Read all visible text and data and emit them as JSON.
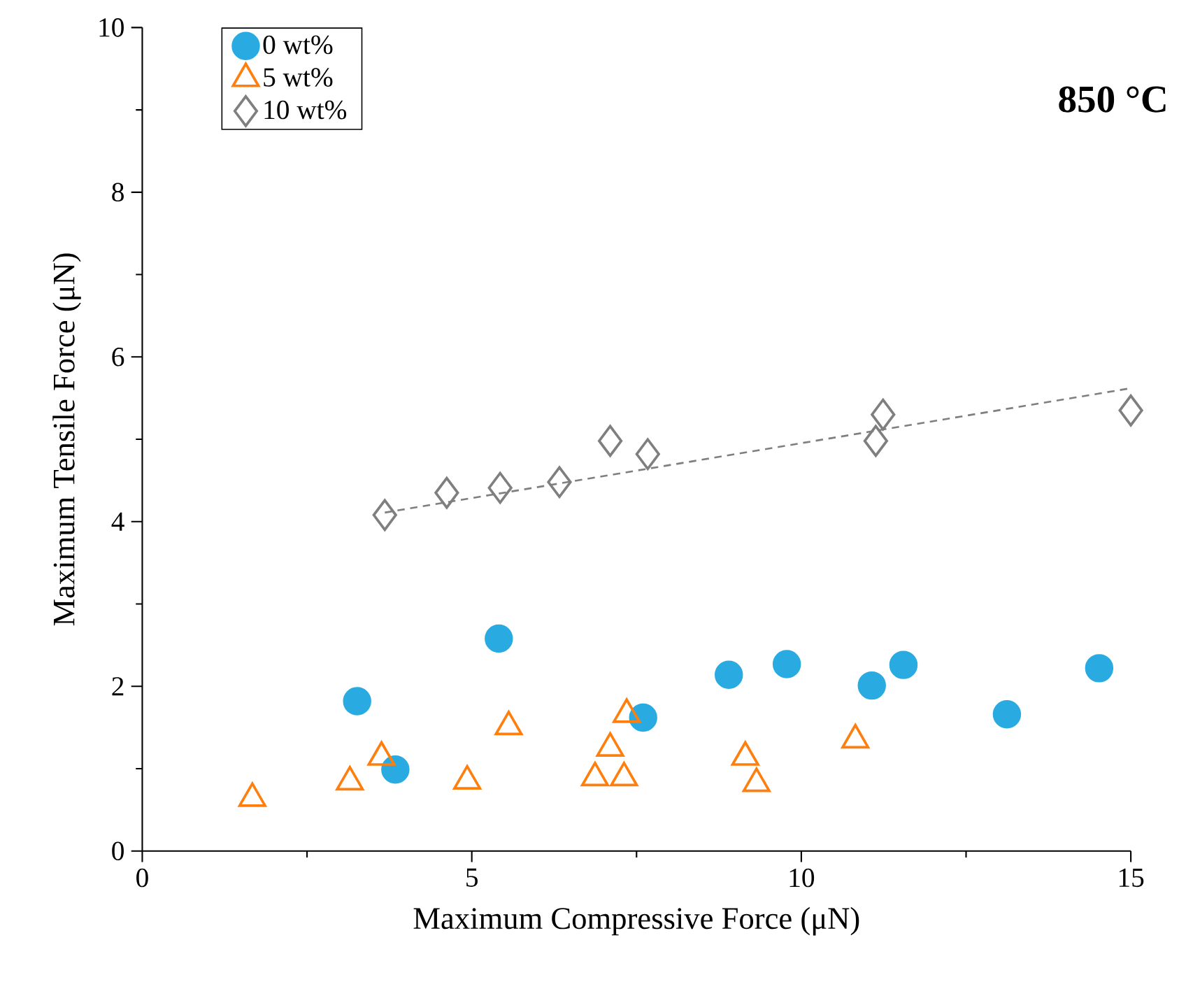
{
  "chart_data": {
    "type": "scatter",
    "xlabel": "Maximum Compressive Force (μN)",
    "ylabel": "Maximum Tensile Force (μN)",
    "xlim": [
      0,
      15
    ],
    "ylim": [
      0,
      10
    ],
    "xticks": [
      0,
      5,
      10,
      15
    ],
    "yticks": [
      0,
      2,
      4,
      6,
      8,
      10
    ],
    "grid": false,
    "legend": "top left",
    "annotations": [
      "850 °C"
    ],
    "series": [
      {
        "name": "0 wt%",
        "color": "#29abe2",
        "marker": "circle",
        "x": [
          3.26,
          3.84,
          5.41,
          7.6,
          8.9,
          9.78,
          11.07,
          11.55,
          13.12,
          14.52
        ],
        "values": [
          1.82,
          0.99,
          2.58,
          1.62,
          2.14,
          2.27,
          2.01,
          2.26,
          1.66,
          2.22
        ]
      },
      {
        "name": "5 wt%",
        "color": "#ff7f0e",
        "marker": "triangle",
        "x": [
          1.67,
          3.15,
          3.63,
          4.93,
          5.56,
          6.87,
          7.1,
          7.31,
          7.35,
          9.15,
          9.32,
          10.82
        ],
        "values": [
          0.64,
          0.84,
          1.14,
          0.85,
          1.51,
          0.89,
          1.25,
          0.89,
          1.66,
          1.14,
          0.82,
          1.35
        ]
      },
      {
        "name": "10 wt%",
        "color": "#7f7f7f",
        "marker": "diamond",
        "x": [
          3.68,
          4.62,
          5.43,
          6.33,
          7.1,
          7.67,
          11.13,
          11.24,
          15.0
        ],
        "values": [
          4.08,
          4.35,
          4.41,
          4.48,
          4.98,
          4.82,
          4.98,
          5.3,
          5.35
        ]
      },
      {
        "type": "line",
        "color": "#7f7f7f",
        "line_style": "dashed",
        "marker": "none",
        "x": [
          3.68,
          15.0
        ],
        "values": [
          4.11,
          5.62
        ]
      }
    ]
  }
}
